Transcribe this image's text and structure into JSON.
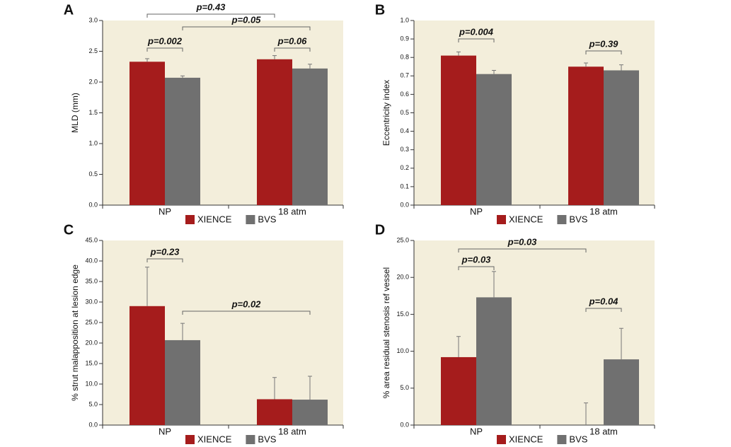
{
  "chart_data": [
    {
      "type": "bar",
      "label": "A",
      "ylabel": "MLD (mm)",
      "categories": [
        "NP",
        "18 atm"
      ],
      "series": [
        {
          "name": "XIENCE",
          "color": "#a51c1c",
          "values": [
            2.33,
            2.37
          ],
          "errors": [
            0.05,
            0.06
          ]
        },
        {
          "name": "BVS",
          "color": "#707070",
          "values": [
            2.07,
            2.22
          ],
          "errors": [
            0.03,
            0.07
          ]
        }
      ],
      "ylim": [
        0,
        3
      ],
      "yticks": [
        {
          "value": 0,
          "label": "0.0"
        },
        0.5,
        {
          "value": 1,
          "label": "1.0"
        },
        1.5,
        {
          "value": 2,
          "label": "2.0"
        },
        2.5,
        {
          "value": 3,
          "label": "3.0"
        }
      ],
      "annotations": [
        "p=0.43",
        "p=0.05",
        "p=0.002",
        "p=0.06"
      ]
    },
    {
      "type": "bar",
      "label": "B",
      "ylabel": "Eccentricity index",
      "categories": [
        "NP",
        "18 atm"
      ],
      "series": [
        {
          "name": "XIENCE",
          "color": "#a51c1c",
          "values": [
            0.81,
            0.75
          ],
          "errors": [
            0.02,
            0.02
          ]
        },
        {
          "name": "BVS",
          "color": "#707070",
          "values": [
            0.71,
            0.73
          ],
          "errors": [
            0.02,
            0.03
          ]
        }
      ],
      "ylim": [
        0,
        1
      ],
      "yticks": [
        {
          "value": 0,
          "label": "0.0"
        },
        0.1,
        0.2,
        0.3,
        0.4,
        0.5,
        0.6,
        0.7,
        0.8,
        0.9,
        {
          "value": 1,
          "label": "1.0"
        }
      ],
      "annotations": [
        "p=0.004",
        "p=0.39"
      ]
    },
    {
      "type": "bar",
      "label": "C",
      "ylabel": "% strut malapposition at lesion edge",
      "categories": [
        "NP",
        "18 atm"
      ],
      "series": [
        {
          "name": "XIENCE",
          "color": "#a51c1c",
          "values": [
            29.0,
            6.3
          ],
          "errors": [
            9.5,
            5.3
          ]
        },
        {
          "name": "BVS",
          "color": "#707070",
          "values": [
            20.7,
            6.2
          ],
          "errors": [
            4.1,
            5.7
          ]
        }
      ],
      "ylim": [
        0,
        45
      ],
      "yticks": [
        {
          "value": 0,
          "label": "0.0"
        },
        {
          "value": 5,
          "label": "5.0"
        },
        {
          "value": 10,
          "label": "10.0"
        },
        {
          "value": 15,
          "label": "15.0"
        },
        {
          "value": 20,
          "label": "20.0"
        },
        {
          "value": 25,
          "label": "25.0"
        },
        {
          "value": 30,
          "label": "30.0"
        },
        {
          "value": 35,
          "label": "35.0"
        },
        {
          "value": 40,
          "label": "40.0"
        },
        {
          "value": 45,
          "label": "45.0"
        }
      ],
      "annotations": [
        "p=0.23",
        "p=0.02"
      ]
    },
    {
      "type": "bar",
      "label": "D",
      "ylabel": "% area residual stenosis ref vessel",
      "categories": [
        "NP",
        "18 atm"
      ],
      "series": [
        {
          "name": "XIENCE",
          "color": "#a51c1c",
          "values": [
            9.2,
            0
          ],
          "errors": [
            2.8,
            3.0
          ]
        },
        {
          "name": "BVS",
          "color": "#707070",
          "values": [
            17.3,
            8.9
          ],
          "errors": [
            3.5,
            4.2
          ]
        }
      ],
      "ylim": [
        0,
        25
      ],
      "yticks": [
        {
          "value": 0,
          "label": "0.0"
        },
        {
          "value": 5,
          "label": "5.0"
        },
        {
          "value": 10,
          "label": "10.0"
        },
        {
          "value": 15,
          "label": "15.0"
        },
        {
          "value": 20,
          "label": "20.0"
        },
        {
          "value": 25,
          "label": "25.0"
        }
      ],
      "annotations": [
        "p=0.03",
        "p=0.03",
        "p=0.04"
      ]
    }
  ]
}
